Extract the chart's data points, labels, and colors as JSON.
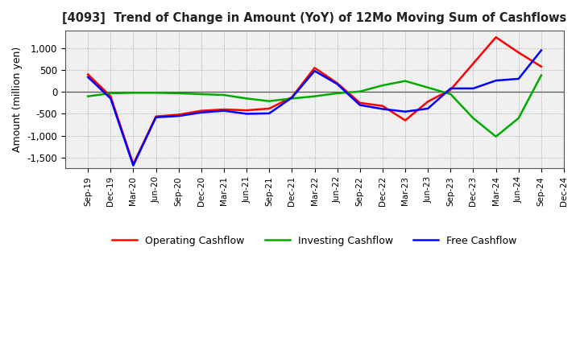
{
  "title": "[4093]  Trend of Change in Amount (YoY) of 12Mo Moving Sum of Cashflows",
  "ylabel": "Amount (million yen)",
  "x_labels": [
    "Sep-19",
    "Dec-19",
    "Mar-20",
    "Jun-20",
    "Sep-20",
    "Dec-20",
    "Mar-21",
    "Jun-21",
    "Sep-21",
    "Dec-21",
    "Mar-22",
    "Jun-22",
    "Sep-22",
    "Dec-22",
    "Mar-23",
    "Jun-23",
    "Sep-23",
    "Dec-23",
    "Mar-24",
    "Jun-24",
    "Sep-24",
    "Dec-24"
  ],
  "operating": [
    400,
    -100,
    -1650,
    -560,
    -520,
    -430,
    -400,
    -420,
    -380,
    -120,
    550,
    200,
    -250,
    -320,
    -650,
    -220,
    50,
    650,
    1250,
    900,
    580,
    null
  ],
  "investing": [
    -100,
    -30,
    -20,
    -20,
    -30,
    -50,
    -70,
    -150,
    -210,
    -150,
    -100,
    -30,
    10,
    150,
    250,
    100,
    -50,
    -600,
    -1020,
    -600,
    380,
    null
  ],
  "free": [
    340,
    -150,
    -1680,
    -580,
    -550,
    -470,
    -430,
    -500,
    -490,
    -130,
    480,
    180,
    -300,
    -390,
    -450,
    -380,
    80,
    80,
    260,
    300,
    950,
    null
  ],
  "operating_color": "#ff0000",
  "investing_color": "#00aa00",
  "free_color": "#0000ff",
  "ylim": [
    -1750,
    1400
  ],
  "yticks": [
    -1500,
    -1000,
    -500,
    0,
    500,
    1000
  ],
  "plot_bg_color": "#f0f0f0",
  "bg_color": "#ffffff",
  "grid_color": "#999999",
  "legend_labels": [
    "Operating Cashflow",
    "Investing Cashflow",
    "Free Cashflow"
  ]
}
